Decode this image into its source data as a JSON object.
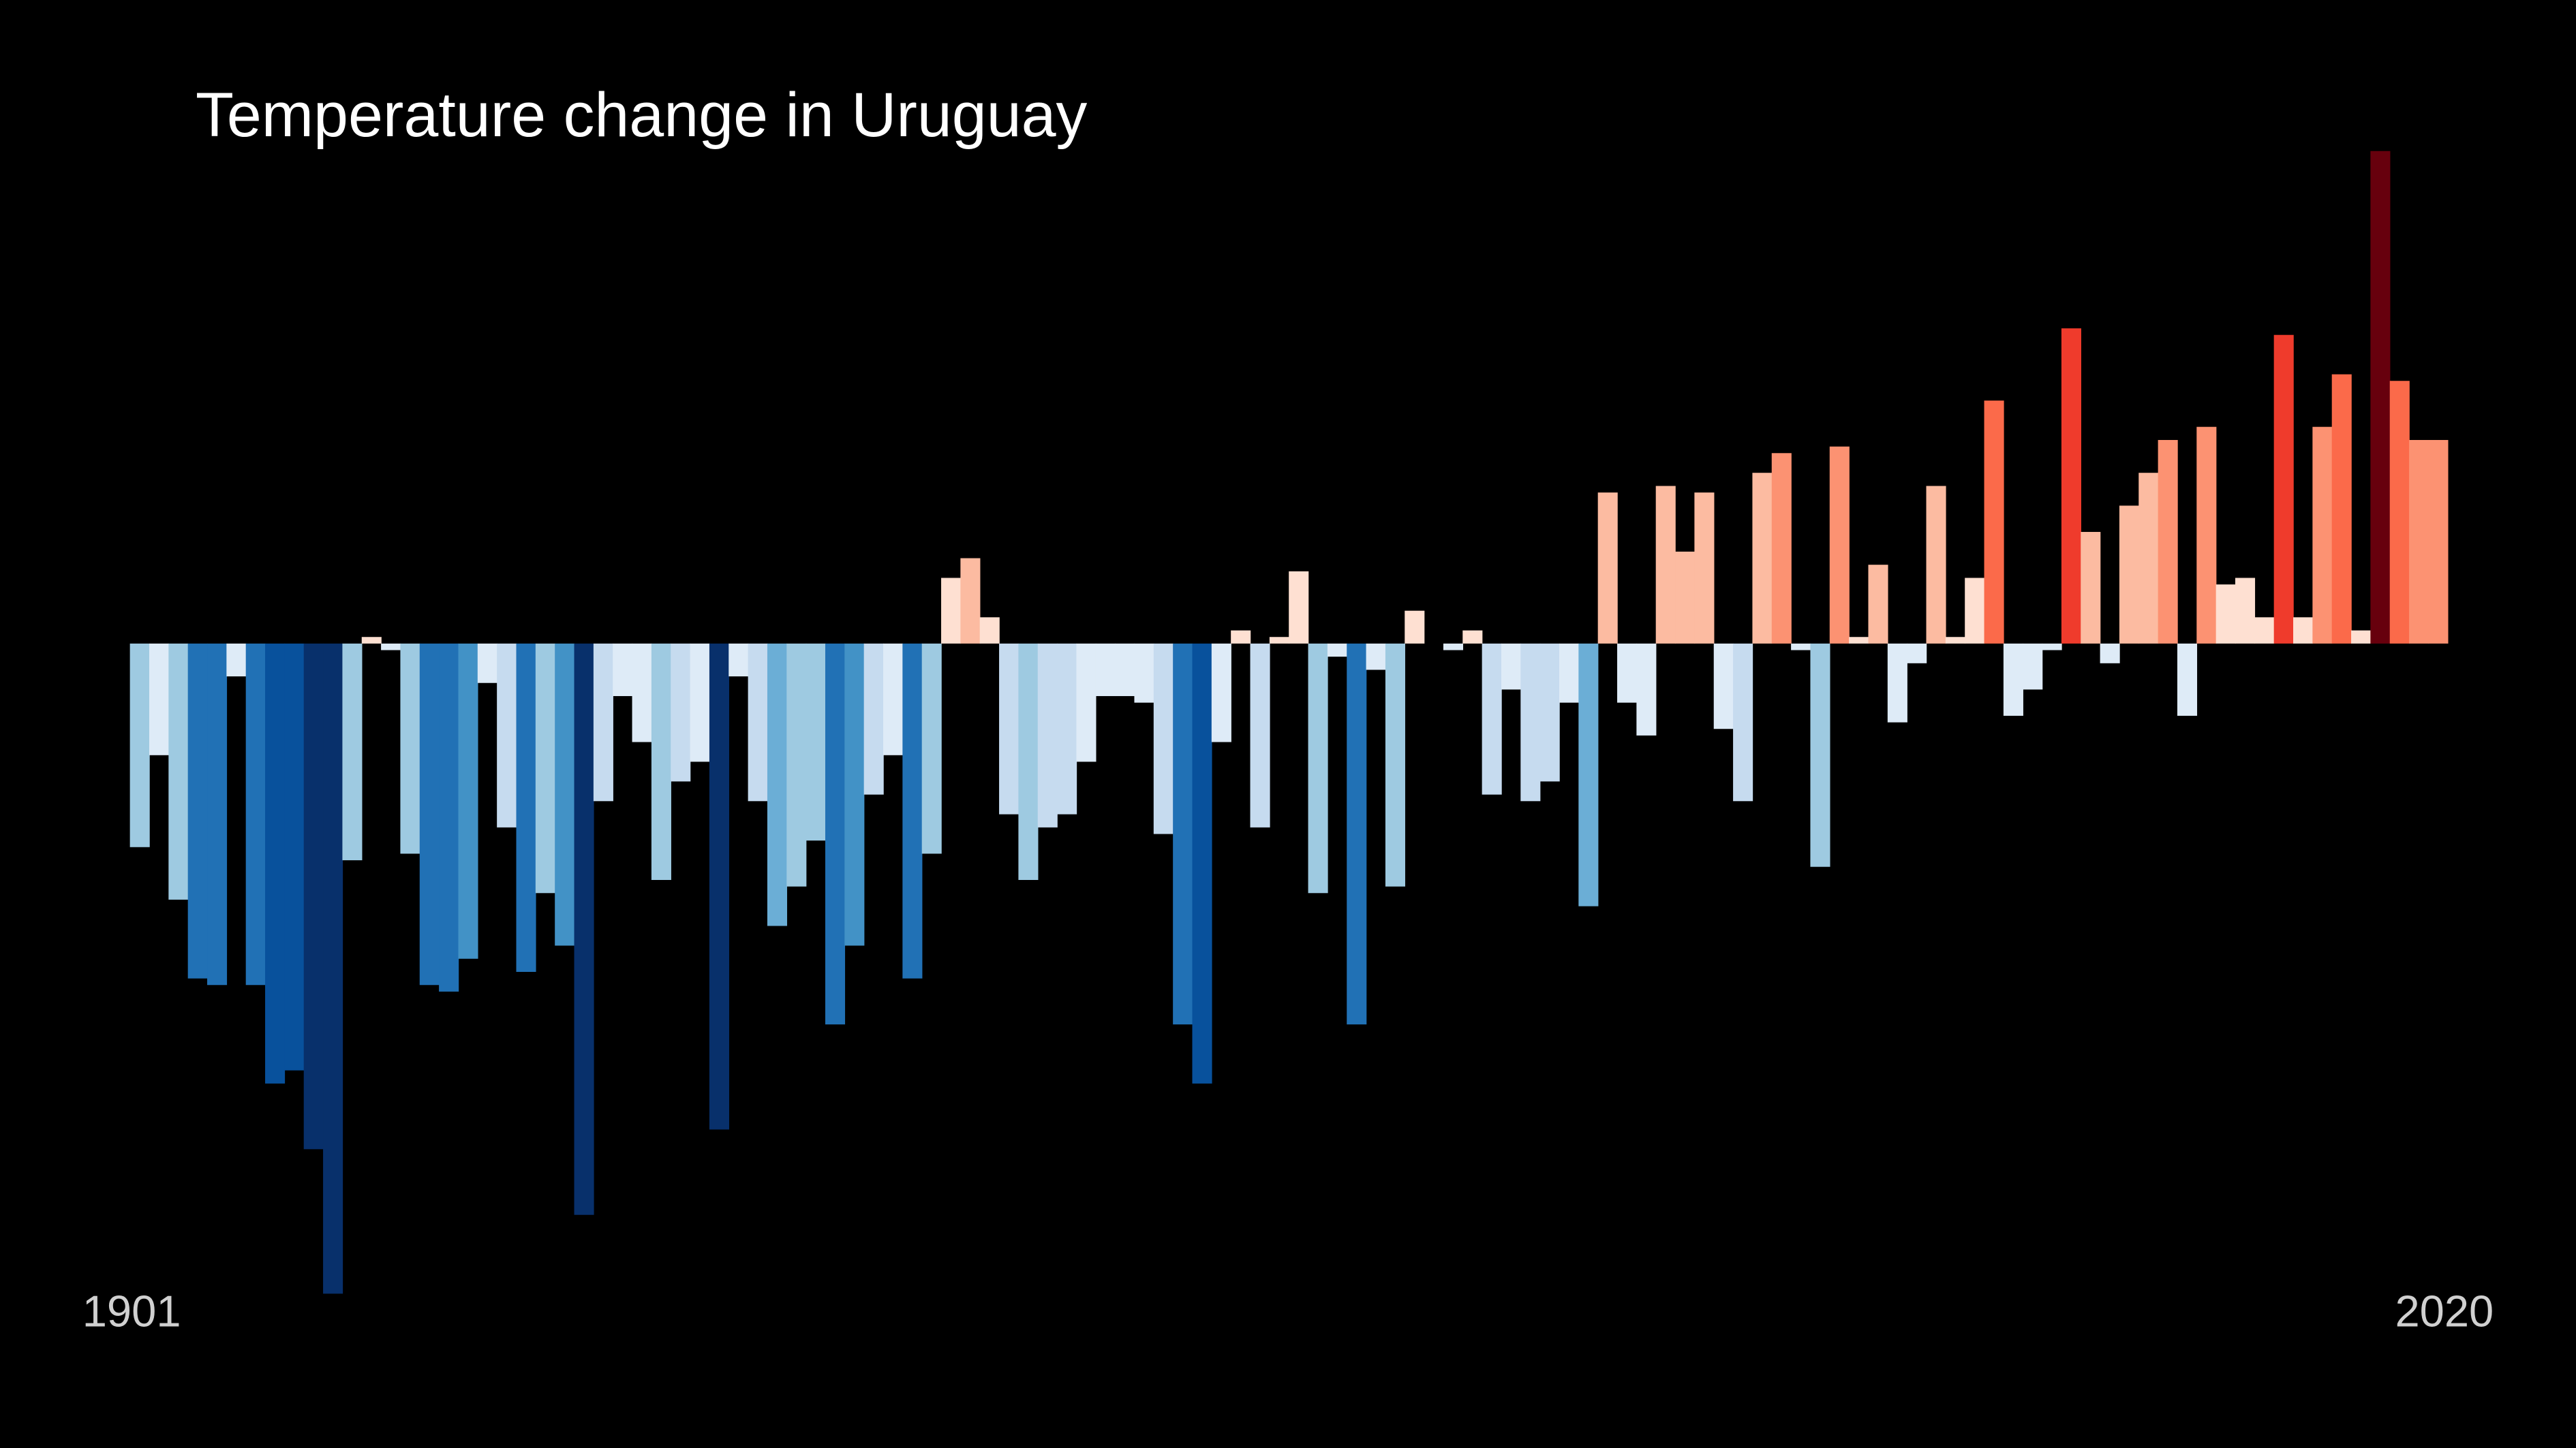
{
  "chart_data": {
    "type": "bar",
    "title": "Temperature change in Uruguay",
    "categories": [
      "1901",
      null,
      null,
      null,
      null,
      null,
      null,
      null,
      null,
      null,
      null,
      null,
      null,
      null,
      null,
      null,
      null,
      null,
      null,
      null,
      null,
      null,
      null,
      null,
      null,
      null,
      null,
      null,
      null,
      null,
      null,
      null,
      null,
      null,
      null,
      null,
      null,
      null,
      null,
      null,
      null,
      null,
      null,
      null,
      null,
      null,
      null,
      null,
      null,
      null,
      null,
      null,
      null,
      null,
      null,
      null,
      null,
      null,
      null,
      null,
      null,
      null,
      null,
      null,
      null,
      null,
      null,
      null,
      null,
      null,
      null,
      null,
      null,
      null,
      null,
      null,
      null,
      null,
      null,
      null,
      null,
      null,
      null,
      null,
      null,
      null,
      null,
      null,
      null,
      null,
      null,
      null,
      null,
      null,
      null,
      null,
      null,
      null,
      null,
      null,
      null,
      null,
      null,
      null,
      null,
      null,
      null,
      null,
      null,
      null,
      null,
      null,
      null,
      null,
      null,
      null,
      null,
      null,
      null,
      "2020"
    ],
    "values": [
      -0.31,
      -0.17,
      -0.39,
      -0.51,
      -0.52,
      -0.05,
      -0.52,
      -0.67,
      -0.65,
      -0.77,
      -0.99,
      -0.33,
      0.01,
      -0.01,
      -0.32,
      -0.52,
      -0.53,
      -0.48,
      -0.06,
      -0.28,
      -0.5,
      -0.38,
      -0.46,
      -0.87,
      -0.24,
      -0.08,
      -0.15,
      -0.36,
      -0.21,
      -0.18,
      -0.74,
      -0.05,
      -0.24,
      -0.43,
      -0.37,
      -0.3,
      -0.58,
      -0.46,
      -0.23,
      -0.17,
      -0.51,
      -0.32,
      0.1,
      0.13,
      0.04,
      -0.26,
      -0.36,
      -0.28,
      -0.26,
      -0.18,
      -0.08,
      -0.08,
      -0.09,
      -0.29,
      -0.58,
      -0.67,
      -0.15,
      0.02,
      -0.28,
      0.01,
      0.11,
      -0.38,
      -0.02,
      -0.58,
      -0.04,
      -0.37,
      0.05,
      0,
      -0.01,
      0.02,
      -0.23,
      -0.07,
      -0.24,
      -0.21,
      -0.09,
      -0.4,
      0.23,
      -0.09,
      -0.14,
      0.24,
      0.14,
      0.23,
      -0.13,
      -0.24,
      0.26,
      0.29,
      -0.01,
      -0.34,
      0.3,
      0.01,
      0.12,
      -0.12,
      -0.03,
      0.24,
      0.01,
      0.1,
      0.37,
      -0.11,
      -0.07,
      -0.01,
      0.48,
      0.17,
      -0.03,
      0.21,
      0.26,
      0.31,
      -0.11,
      0.33,
      0.09,
      0.1,
      0.04,
      0.47,
      0.04,
      0.33,
      0.41,
      0.02,
      0.75,
      0.4,
      0.31,
      0.31
    ],
    "ylim": [
      -1.0,
      0.75
    ],
    "colormap": "RdBu_r"
  }
}
